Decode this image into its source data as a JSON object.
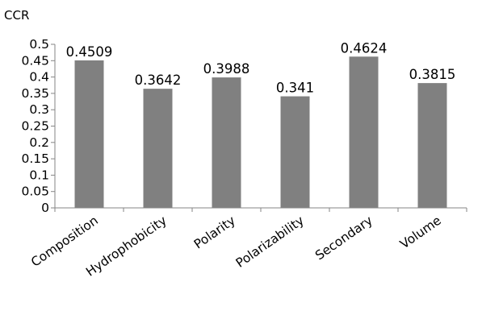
{
  "chart_data": {
    "type": "bar",
    "title": "",
    "xlabel": "",
    "ylabel": "CCR",
    "categories": [
      "Composition",
      "Hydrophobicity",
      "Polarity",
      "Polarizability",
      "Secondary",
      "Volume"
    ],
    "values": [
      0.4509,
      0.3642,
      0.3988,
      0.341,
      0.4624,
      0.3815
    ],
    "data_labels": [
      "0.4509",
      "0.3642",
      "0.3988",
      "0.341",
      "0.4624",
      "0.3815"
    ],
    "ylim": [
      0,
      0.5
    ],
    "yticks": [
      0,
      0.05,
      0.1,
      0.15,
      0.2,
      0.25,
      0.3,
      0.35,
      0.4,
      0.45,
      0.5
    ],
    "ytick_labels": [
      "0",
      "0.05",
      "0.1",
      "0.15",
      "0.2",
      "0.25",
      "0.3",
      "0.35",
      "0.4",
      "0.45",
      "0.5"
    ],
    "grid": false,
    "legend": "none",
    "bar_color": "#808080",
    "axis_color": "#868686"
  }
}
